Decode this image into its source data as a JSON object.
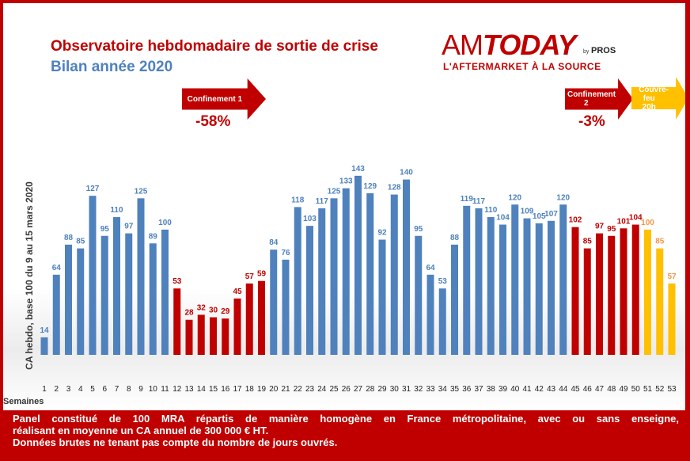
{
  "header": {
    "title": "Observatoire hebdomadaire de sortie de crise",
    "subtitle": "Bilan année 2020"
  },
  "logo": {
    "am": "AM",
    "today": "TODAY",
    "by": "by",
    "pros": "PROS",
    "tagline": "L'AFTERMARKET À LA SOURCE"
  },
  "annotations": {
    "confinement1": {
      "label": "Confinement 1",
      "change": "-58%"
    },
    "confinement2": {
      "label_line1": "Confinement",
      "label_line2": "2",
      "change": "-3%"
    },
    "couvre_feu": {
      "label_line1": "Couvre-feu",
      "label_line2": "20h"
    }
  },
  "footer": {
    "line1": "Panel constitué de 100 MRA répartis de manière homogène en France métropolitaine, avec ou sans enseigne,",
    "line2": "réalisant en moyenne un CA annuel de 300 000 € HT.",
    "line3": "Données brutes ne tenant pas compte du nombre de jours ouvrés."
  },
  "colors": {
    "blue": "#4f81bd",
    "red": "#c00000",
    "yellow": "#ffc000",
    "label_yellow": "#f79646",
    "background": "#c00000"
  },
  "chart_data": {
    "type": "bar",
    "ylabel": "CA hebdo, base 100 du 9 au 15 mars 2020",
    "xlabel": "Semaines",
    "grid": false,
    "ylim": [
      0,
      160
    ],
    "categories": [
      "1",
      "2",
      "3",
      "4",
      "5",
      "6",
      "7",
      "8",
      "9",
      "10",
      "11",
      "12",
      "13",
      "14",
      "15",
      "16",
      "17",
      "18",
      "19",
      "20",
      "21",
      "22",
      "23",
      "24",
      "25",
      "26",
      "27",
      "28",
      "29",
      "30",
      "31",
      "32",
      "33",
      "34",
      "35",
      "36",
      "37",
      "38",
      "39",
      "40",
      "41",
      "42",
      "43",
      "44",
      "45",
      "46",
      "47",
      "48",
      "49",
      "50",
      "51",
      "52",
      "53"
    ],
    "values": [
      14,
      64,
      88,
      85,
      127,
      95,
      110,
      97,
      125,
      89,
      100,
      53,
      28,
      32,
      30,
      29,
      45,
      57,
      59,
      84,
      76,
      118,
      103,
      117,
      125,
      133,
      143,
      129,
      92,
      128,
      140,
      95,
      64,
      53,
      88,
      119,
      117,
      110,
      104,
      120,
      109,
      105,
      107,
      120,
      102,
      85,
      97,
      95,
      101,
      104,
      100,
      85,
      57
    ],
    "bar_colors": [
      "blue",
      "blue",
      "blue",
      "blue",
      "blue",
      "blue",
      "blue",
      "blue",
      "blue",
      "blue",
      "blue",
      "red",
      "red",
      "red",
      "red",
      "red",
      "red",
      "red",
      "red",
      "blue",
      "blue",
      "blue",
      "blue",
      "blue",
      "blue",
      "blue",
      "blue",
      "blue",
      "blue",
      "blue",
      "blue",
      "blue",
      "blue",
      "blue",
      "blue",
      "blue",
      "blue",
      "blue",
      "blue",
      "blue",
      "blue",
      "blue",
      "blue",
      "blue",
      "red",
      "red",
      "red",
      "red",
      "red",
      "red",
      "yellow",
      "yellow",
      "yellow"
    ]
  }
}
